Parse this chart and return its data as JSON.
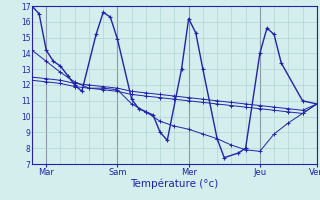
{
  "xlabel": "Température (°c)",
  "bg_color": "#d4eeee",
  "line_color": "#2222aa",
  "grid_color": "#aacccc",
  "grid_color_major": "#8899aa",
  "ylim": [
    7,
    17
  ],
  "yticks": [
    7,
    8,
    9,
    10,
    11,
    12,
    13,
    14,
    15,
    16,
    17
  ],
  "xlim": [
    0,
    80
  ],
  "day_positions": [
    4,
    24,
    44,
    64,
    80
  ],
  "day_labels": [
    "Mar",
    "Sam",
    "Mer",
    "Jeu",
    "Ven"
  ],
  "series_main": {
    "x": [
      0,
      2,
      4,
      6,
      8,
      10,
      12,
      14,
      18,
      20,
      22,
      24,
      28,
      30,
      32,
      34,
      36,
      38,
      42,
      44,
      46,
      48,
      52,
      54,
      58,
      60,
      64,
      66,
      68,
      70,
      76,
      80
    ],
    "y": [
      17,
      16.5,
      14.2,
      13.5,
      13.2,
      12.6,
      12.0,
      11.6,
      15.2,
      16.6,
      16.3,
      14.9,
      11.1,
      10.5,
      10.3,
      10.1,
      9.0,
      8.5,
      13.0,
      16.2,
      15.3,
      13.0,
      8.6,
      7.4,
      7.7,
      8.0,
      14.0,
      15.6,
      15.2,
      13.4,
      11.0,
      10.8
    ]
  },
  "series_flat": [
    {
      "x": [
        0,
        4,
        8,
        12,
        16,
        20,
        24,
        28,
        32,
        36,
        40,
        44,
        48,
        52,
        56,
        60,
        64,
        68,
        72,
        76,
        80
      ],
      "y": [
        12.5,
        12.4,
        12.3,
        12.1,
        12.0,
        11.9,
        11.8,
        11.6,
        11.5,
        11.4,
        11.3,
        11.2,
        11.1,
        11.0,
        10.9,
        10.8,
        10.7,
        10.6,
        10.5,
        10.4,
        10.8
      ]
    },
    {
      "x": [
        0,
        4,
        8,
        12,
        16,
        20,
        24,
        28,
        32,
        36,
        40,
        44,
        48,
        52,
        56,
        60,
        64,
        68,
        72,
        76,
        80
      ],
      "y": [
        12.3,
        12.2,
        12.1,
        11.9,
        11.8,
        11.7,
        11.6,
        11.4,
        11.3,
        11.2,
        11.1,
        11.0,
        10.9,
        10.8,
        10.7,
        10.6,
        10.5,
        10.4,
        10.3,
        10.2,
        10.8
      ]
    },
    {
      "x": [
        0,
        4,
        8,
        12,
        16,
        20,
        24,
        28,
        32,
        36,
        40,
        44,
        48,
        52,
        56,
        60,
        64,
        68,
        72,
        76,
        80
      ],
      "y": [
        14.2,
        13.5,
        12.8,
        12.2,
        11.8,
        11.8,
        11.7,
        10.8,
        10.3,
        9.7,
        9.4,
        9.2,
        8.9,
        8.6,
        8.2,
        7.9,
        7.8,
        8.9,
        9.6,
        10.2,
        10.8
      ]
    }
  ]
}
